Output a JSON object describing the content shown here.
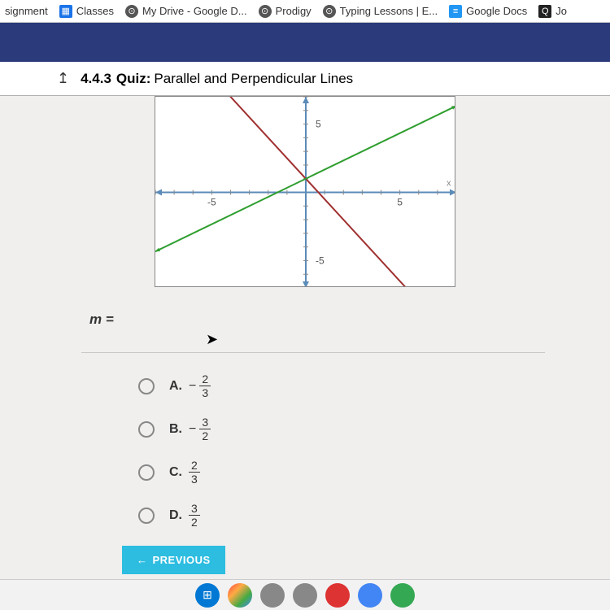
{
  "bookmarks": [
    {
      "label": "signment",
      "icon": ""
    },
    {
      "label": "Classes",
      "icon": "▦",
      "cls": "classes"
    },
    {
      "label": "My Drive - Google D...",
      "icon": "⊙",
      "cls": "drive"
    },
    {
      "label": "Prodigy",
      "icon": "⊙",
      "cls": "prodigy"
    },
    {
      "label": "Typing Lessons | E...",
      "icon": "⊙",
      "cls": "typing"
    },
    {
      "label": "Google Docs",
      "icon": "≡",
      "cls": "docs"
    },
    {
      "label": "Jo",
      "icon": "Q",
      "cls": "jo"
    }
  ],
  "quiz": {
    "id": "4.4.3",
    "kind": "Quiz:",
    "title": "Parallel and Perpendicular Lines"
  },
  "prompt": "m =",
  "options": [
    {
      "letter": "A.",
      "sign": "−",
      "num": "2",
      "den": "3"
    },
    {
      "letter": "B.",
      "sign": "−",
      "num": "3",
      "den": "2"
    },
    {
      "letter": "C.",
      "sign": "",
      "num": "2",
      "den": "3"
    },
    {
      "letter": "D.",
      "sign": "",
      "num": "3",
      "den": "2"
    }
  ],
  "prev_label": "PREVIOUS",
  "graph": {
    "xlim": [
      -8,
      8
    ],
    "ylim": [
      -7,
      7
    ],
    "xtick_labels": {
      "-5": "-5",
      "5": "5"
    },
    "ytick_labels": {
      "5": "5",
      "-5": "-5"
    },
    "axis_x_label": "x",
    "axis_color": "#5b8bb8",
    "grid_tick_color": "#888",
    "background": "#ffffff",
    "lines": [
      {
        "slope": -1.5,
        "intercept": 1,
        "color": "#a03030",
        "width": 2
      },
      {
        "slope": 0.6667,
        "intercept": 1,
        "color": "#2e9e2e",
        "width": 2
      }
    ],
    "label_fontsize": 12
  },
  "colors": {
    "blue_bar": "#2a3a7a",
    "button": "#2dbde0"
  }
}
